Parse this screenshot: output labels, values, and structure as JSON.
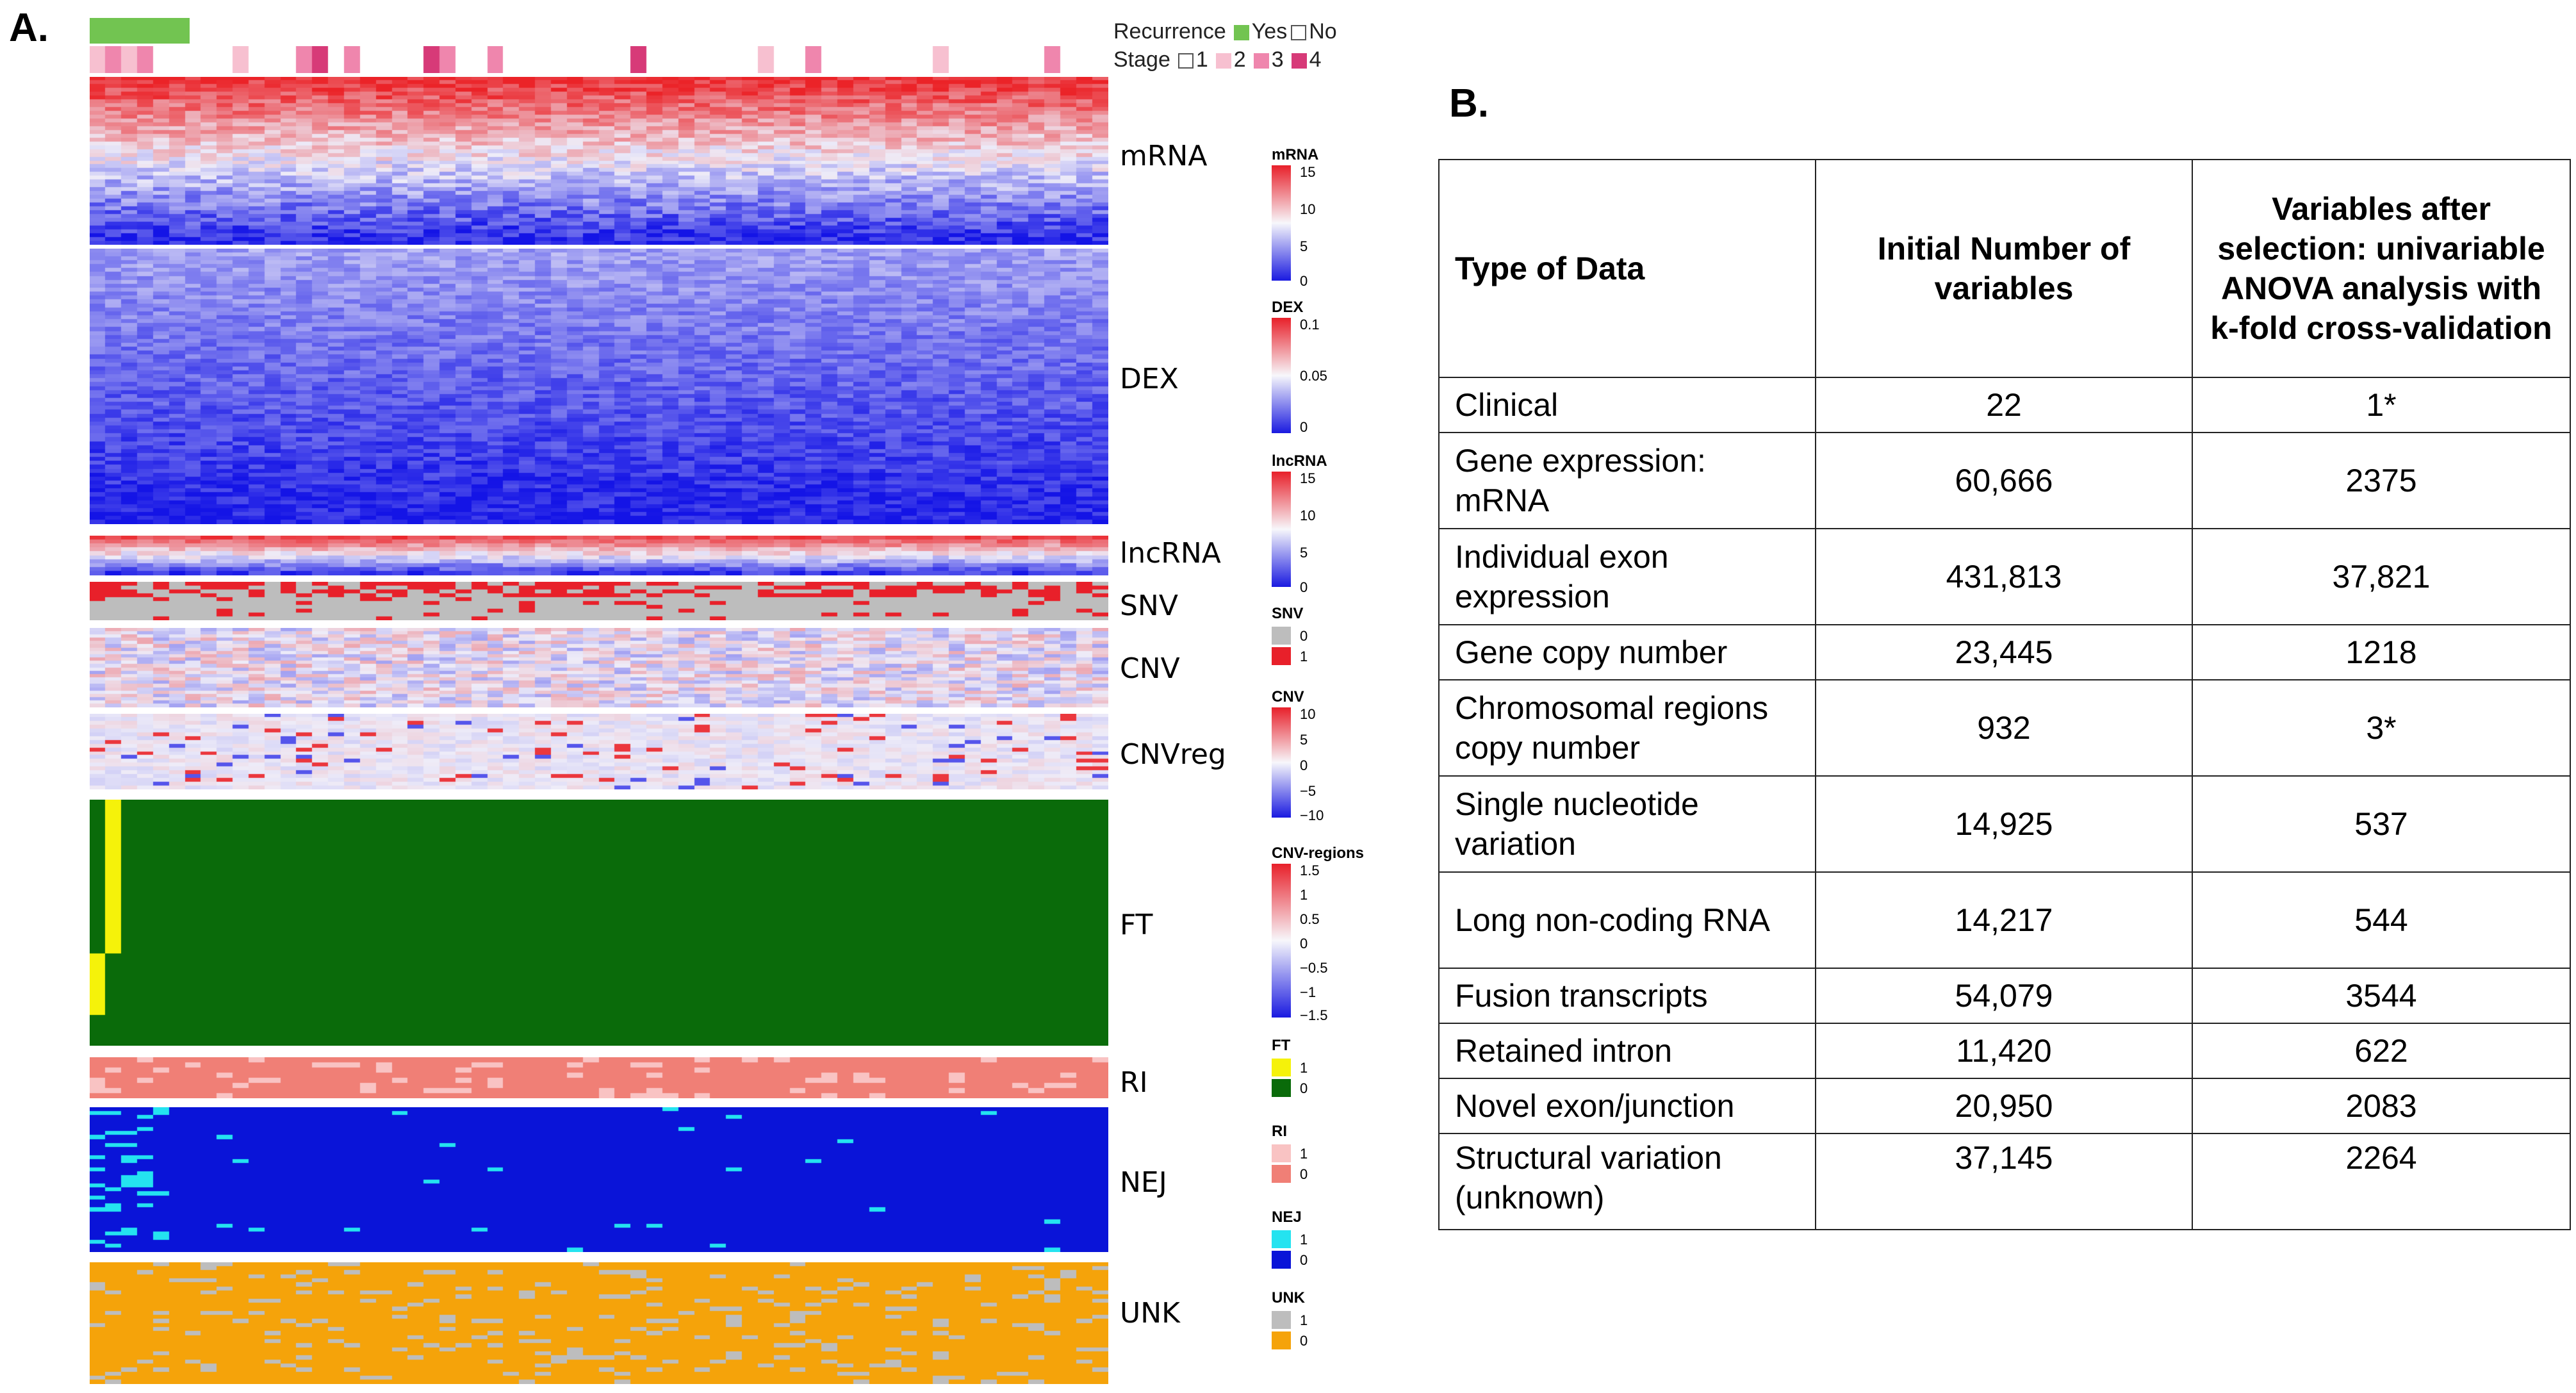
{
  "panel_a": {
    "label": "A.",
    "legend": {
      "recurrence": {
        "title": "Recurrence",
        "yes": "Yes",
        "no": "No",
        "yes_color": "#72c451"
      },
      "stage": {
        "title": "Stage",
        "s1": "1",
        "s2": "2",
        "s3": "3",
        "s4": "4",
        "colors": [
          "#ffffff",
          "#f7c0d0",
          "#ef86ad",
          "#d73a78"
        ]
      }
    },
    "rows": [
      {
        "name": "mRNA"
      },
      {
        "name": "DEX"
      },
      {
        "name": "lncRNA"
      },
      {
        "name": "SNV"
      },
      {
        "name": "CNV"
      },
      {
        "name": "CNVreg"
      },
      {
        "name": "FT"
      },
      {
        "name": "RI"
      },
      {
        "name": "NEJ"
      },
      {
        "name": "UNK"
      }
    ],
    "colorbars": [
      {
        "title": "mRNA",
        "ticks": [
          "15",
          "10",
          "5",
          "0"
        ]
      },
      {
        "title": "DEX",
        "ticks": [
          "0.1",
          "0.05",
          "0"
        ]
      },
      {
        "title": "lncRNA",
        "ticks": [
          "15",
          "10",
          "5",
          "0"
        ]
      },
      {
        "title": "SNV",
        "ticks": [
          "0",
          "1"
        ],
        "colors": [
          "#bdbdbd",
          "#e8202a"
        ]
      },
      {
        "title": "CNV",
        "ticks": [
          "10",
          "5",
          "0",
          "−5",
          "−10"
        ]
      },
      {
        "title": "CNV-regions",
        "ticks": [
          "1.5",
          "1",
          "0.5",
          "0",
          "−0.5",
          "−1",
          "−1.5"
        ]
      },
      {
        "title": "FT",
        "ticks": [
          "1",
          "0"
        ],
        "colors": [
          "#f5f20a",
          "#0a6b0a"
        ]
      },
      {
        "title": "RI",
        "ticks": [
          "1",
          "0"
        ],
        "colors": [
          "#f9c3c3",
          "#f07f76"
        ]
      },
      {
        "title": "NEJ",
        "ticks": [
          "1",
          "0"
        ],
        "colors": [
          "#24e3f0",
          "#0a14d8"
        ]
      },
      {
        "title": "UNK",
        "ticks": [
          "1",
          "0"
        ],
        "colors": [
          "#bdbdbd",
          "#f5a30a"
        ]
      }
    ]
  },
  "panel_b": {
    "label": "B.",
    "headers": [
      "Type of Data",
      "Initial Number of variables",
      "Variables after selection: univariable ANOVA analysis with k-fold cross-validation"
    ],
    "rows": [
      {
        "type": "Clinical",
        "initial": "22",
        "selected": "1*"
      },
      {
        "type": "Gene expression: mRNA",
        "initial": "60,666",
        "selected": "2375"
      },
      {
        "type": "Individual exon expression",
        "initial": "431,813",
        "selected": "37,821"
      },
      {
        "type": "Gene copy number",
        "initial": "23,445",
        "selected": "1218"
      },
      {
        "type": "Chromosomal regions copy number",
        "initial": "932",
        "selected": "3*"
      },
      {
        "type": "Single nucleotide variation",
        "initial": "14,925",
        "selected": "537"
      },
      {
        "type": "Long non-coding RNA",
        "initial": "14,217",
        "selected": "544"
      },
      {
        "type": "Fusion transcripts",
        "initial": "54,079",
        "selected": "3544"
      },
      {
        "type": "Retained intron",
        "initial": "11,420",
        "selected": "622"
      },
      {
        "type": "Novel exon/junction",
        "initial": "20,950",
        "selected": "2083"
      },
      {
        "type": "Structural variation (unknown)",
        "initial": "37,145",
        "selected": "2264"
      }
    ]
  }
}
